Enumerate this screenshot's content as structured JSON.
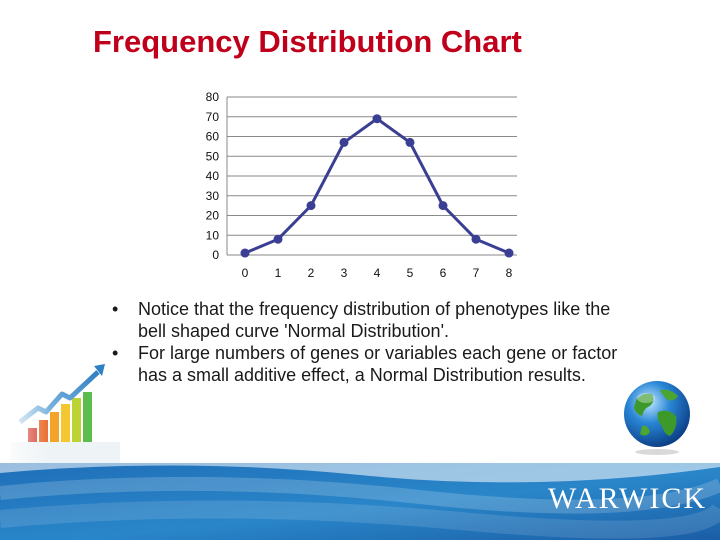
{
  "slide": {
    "title": "Frequency Distribution Chart",
    "bullets": [
      {
        "marker": "•",
        "text": "Notice that the frequency distribution of phenotypes like the bell shaped curve 'Normal Distribution'."
      },
      {
        "marker": "•",
        "text": "For large numbers of genes or variables each gene or factor has a small additive effect, a Normal Distribution results."
      }
    ],
    "logo_text": "WARWICK",
    "colors": {
      "title": "#c0001a",
      "series_line": "#3a3f94",
      "footer_blue": "#1f6fb8"
    },
    "icons": [
      "growth-bar-chart-icon",
      "globe-icon"
    ]
  },
  "chart_data": {
    "type": "line",
    "x": [
      0,
      1,
      2,
      3,
      4,
      5,
      6,
      7,
      8
    ],
    "values": [
      1,
      8,
      25,
      57,
      69,
      57,
      25,
      8,
      1
    ],
    "x_tick_labels": [
      "0",
      "1",
      "2",
      "3",
      "4",
      "5",
      "6",
      "7",
      "8"
    ],
    "y_tick_labels": [
      "0",
      "10",
      "20",
      "30",
      "40",
      "50",
      "60",
      "70",
      "80"
    ],
    "ylim": [
      0,
      80
    ],
    "grid": true,
    "legend": "none"
  }
}
